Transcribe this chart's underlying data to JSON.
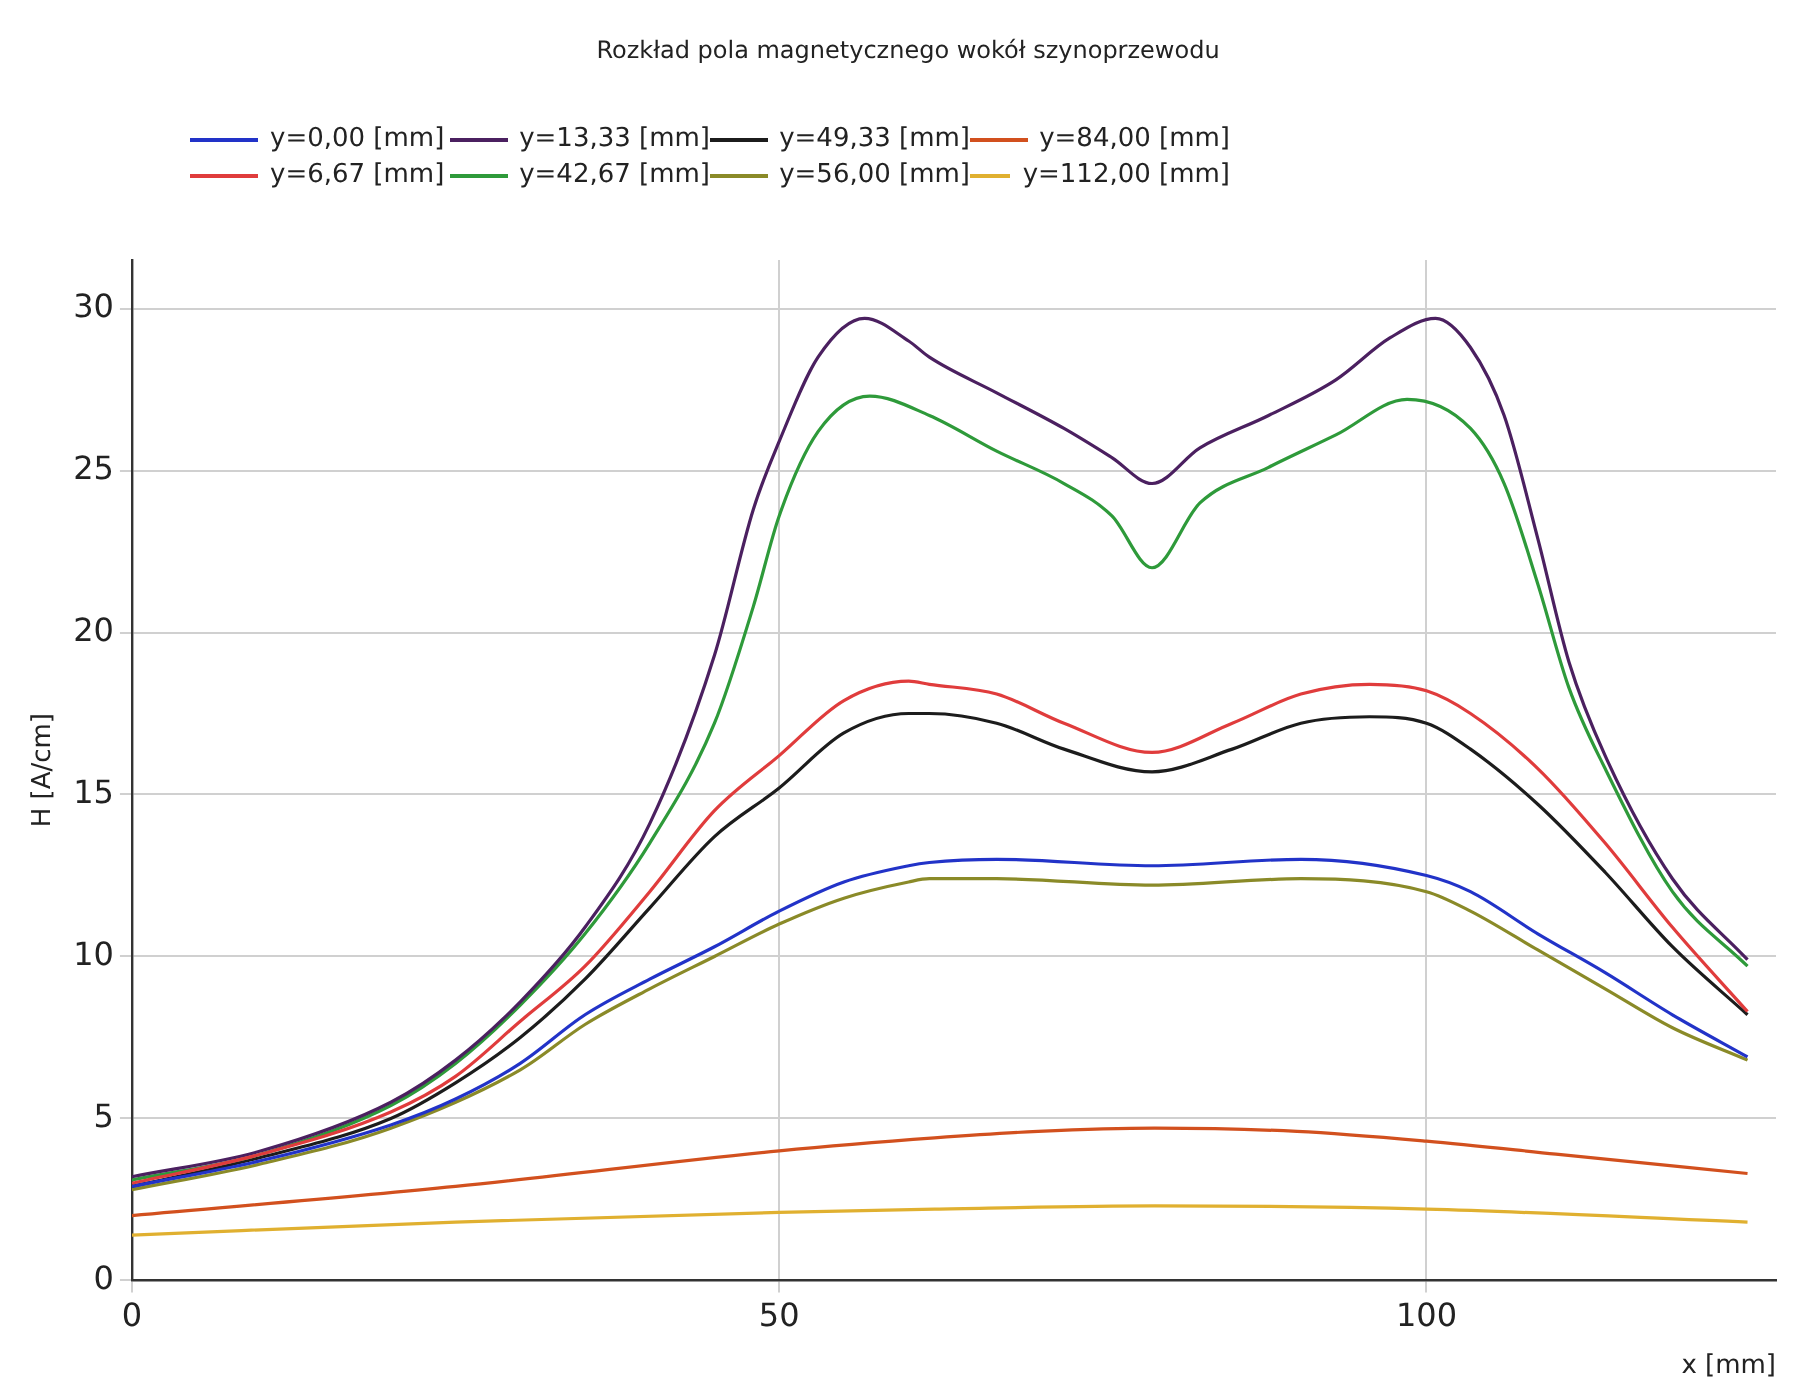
{
  "chart_data": {
    "type": "line",
    "title": "Rozkład pola magnetycznego wokół szynoprzewodu",
    "xlabel": "x [mm]",
    "ylabel": "H [A/cm]",
    "xlim": [
      0,
      127
    ],
    "ylim": [
      0,
      31.5
    ],
    "xticks": [
      0,
      50,
      100
    ],
    "yticks": [
      0,
      5,
      10,
      15,
      20,
      25,
      30
    ],
    "grid": true,
    "legend": "top",
    "series": [
      {
        "name": "y=0,00 [mm]",
        "color": "#2233c8",
        "x": [
          0,
          10,
          20,
          25,
          30,
          35,
          40,
          45,
          50,
          55,
          60,
          61.6,
          66.8,
          78.8,
          90.3,
          100,
          103.4,
          108.6,
          113.8,
          119,
          124.8
        ],
        "values": [
          2.9,
          3.7,
          4.8,
          5.6,
          6.7,
          8.2,
          9.3,
          10.3,
          11.4,
          12.3,
          12.8,
          12.9,
          13.0,
          12.8,
          13.0,
          12.5,
          12.0,
          10.7,
          9.5,
          8.2,
          6.9
        ]
      },
      {
        "name": "y=6,67 [mm]",
        "color": "#e03c3c",
        "x": [
          0,
          10,
          20,
          25,
          30,
          35,
          40,
          45,
          50,
          55,
          60,
          61.6,
          66.8,
          72,
          78.8,
          85,
          90.3,
          95.6,
          100,
          103.4,
          108.6,
          113.8,
          119,
          124.8
        ],
        "values": [
          3.0,
          3.9,
          5.2,
          6.3,
          8.0,
          9.7,
          12.0,
          14.5,
          16.2,
          17.9,
          18.5,
          18.4,
          18.1,
          17.2,
          16.3,
          17.2,
          18.1,
          18.4,
          18.2,
          17.5,
          15.8,
          13.5,
          10.9,
          8.3
        ]
      },
      {
        "name": "y=13,33 [mm]",
        "color": "#4b2060",
        "x": [
          0,
          10,
          20,
          25,
          30,
          35,
          40,
          45,
          48,
          50,
          53,
          56.6,
          60,
          61.6,
          66.8,
          72,
          75.7,
          78.8,
          82.5,
          87.8,
          93,
          97.2,
          100.7,
          103.4,
          106,
          108.6,
          111,
          113.8,
          119,
          124.8
        ],
        "values": [
          3.2,
          4.0,
          5.5,
          6.8,
          8.6,
          10.9,
          14.1,
          19.3,
          23.8,
          25.9,
          28.5,
          29.7,
          29.0,
          28.5,
          27.4,
          26.3,
          25.4,
          24.6,
          25.7,
          26.7,
          27.8,
          29.1,
          29.7,
          28.8,
          26.7,
          22.9,
          19.1,
          16.2,
          12.4,
          9.9
        ]
      },
      {
        "name": "y=42,67 [mm]",
        "color": "#2e9a3a",
        "x": [
          0,
          10,
          20,
          25,
          30,
          35,
          40,
          45,
          48,
          50,
          53,
          57,
          61.6,
          66.8,
          72,
          75.7,
          78.8,
          82.5,
          87.8,
          93,
          98.5,
          103.4,
          106,
          108.6,
          111,
          113.8,
          119,
          124.8
        ],
        "values": [
          3.1,
          3.9,
          5.4,
          6.7,
          8.5,
          10.7,
          13.5,
          17.2,
          20.8,
          23.6,
          26.2,
          27.3,
          26.7,
          25.6,
          24.6,
          23.6,
          22.0,
          24.0,
          25.1,
          26.1,
          27.2,
          26.3,
          24.6,
          21.5,
          18.3,
          15.8,
          12.0,
          9.7
        ]
      },
      {
        "name": "y=49,33 [mm]",
        "color": "#1c1c1c",
        "x": [
          0,
          10,
          20,
          25,
          30,
          35,
          40,
          45,
          50,
          55,
          60,
          61.6,
          66.8,
          72,
          78.8,
          85,
          90.3,
          95.6,
          100,
          103.4,
          108.6,
          113.8,
          119,
          124.8
        ],
        "values": [
          2.9,
          3.8,
          5.0,
          6.1,
          7.5,
          9.3,
          11.5,
          13.7,
          15.2,
          16.9,
          17.5,
          17.5,
          17.2,
          16.4,
          15.7,
          16.4,
          17.2,
          17.4,
          17.2,
          16.4,
          14.7,
          12.6,
          10.3,
          8.2
        ]
      },
      {
        "name": "y=56,00 [mm]",
        "color": "#8a8a28",
        "x": [
          0,
          10,
          20,
          30,
          35,
          40,
          45,
          50,
          55,
          60,
          61.6,
          66.8,
          78.8,
          90.3,
          100,
          103.4,
          108.6,
          113.8,
          119,
          124.8
        ],
        "values": [
          2.8,
          3.6,
          4.7,
          6.5,
          7.9,
          9.0,
          10.0,
          11.0,
          11.8,
          12.3,
          12.4,
          12.4,
          12.2,
          12.4,
          12.0,
          11.4,
          10.2,
          9.0,
          7.8,
          6.8
        ]
      },
      {
        "name": "y=84,00 [mm]",
        "color": "#d2501e",
        "x": [
          0,
          25,
          50,
          62,
          70,
          79,
          90,
          100,
          110,
          124.8
        ],
        "values": [
          2.0,
          2.9,
          4.0,
          4.4,
          4.6,
          4.7,
          4.6,
          4.3,
          3.9,
          3.3
        ]
      },
      {
        "name": "y=112,00 [mm]",
        "color": "#e0b030",
        "x": [
          0,
          25,
          50,
          62,
          79,
          100,
          124.8
        ],
        "values": [
          1.4,
          1.8,
          2.1,
          2.2,
          2.3,
          2.2,
          1.8
        ]
      }
    ]
  }
}
